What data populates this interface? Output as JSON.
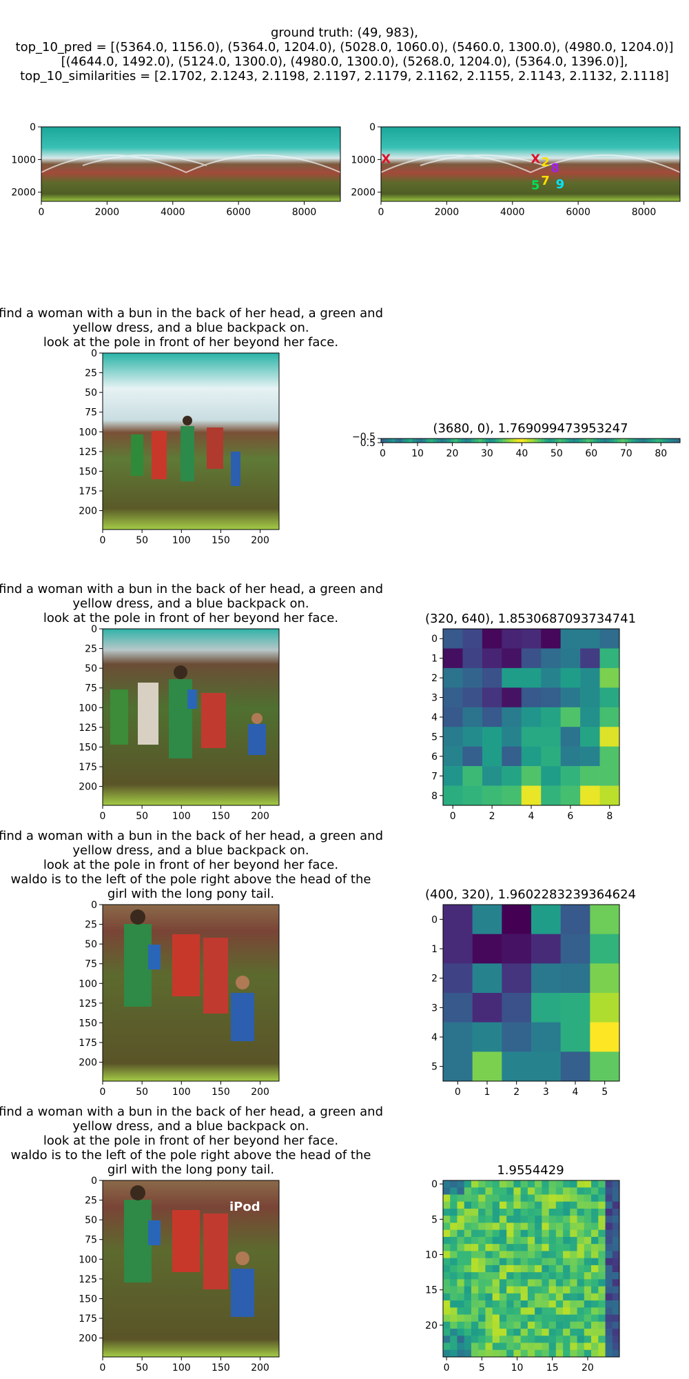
{
  "header": {
    "lines": [
      "ground truth: (49, 983),",
      "top_10_pred = [(5364.0, 1156.0), (5364.0, 1204.0), (5028.0, 1060.0), (5460.0, 1300.0), (4980.0, 1204.0)]",
      "[(4644.0, 1492.0), (5124.0, 1300.0), (4980.0, 1300.0), (5268.0, 1204.0), (5364.0, 1396.0)],",
      "top_10_similarities = [2.1702, 2.1243, 2.1198, 2.1197, 2.1179, 2.1162, 2.1155, 2.1143, 2.1132, 2.1118]"
    ]
  },
  "colors": {
    "viridis_low": "#440154",
    "viridis_mid": "#21918c",
    "viridis_high": "#fde725",
    "tent_teal": "#2fb3a8",
    "ground_green": "#5a6b2a"
  },
  "chart_data": [
    {
      "type": "image",
      "id": "panorama_left",
      "xticks": [
        0,
        2000,
        4000,
        6000,
        8000
      ],
      "yticks": [
        0,
        1000,
        2000
      ],
      "xlim": [
        0,
        9100
      ],
      "ylim": [
        2280,
        0
      ]
    },
    {
      "type": "image",
      "id": "panorama_right",
      "xticks": [
        0,
        2000,
        4000,
        6000,
        8000
      ],
      "yticks": [
        0,
        1000,
        2000
      ],
      "xlim": [
        0,
        9100
      ],
      "ylim": [
        2280,
        0
      ],
      "markers": [
        {
          "label": "X",
          "x": 150,
          "y": 983,
          "color": "#e0102a"
        },
        {
          "label": "X",
          "x": 4700,
          "y": 983,
          "color": "#e0102a"
        },
        {
          "label": "2",
          "x": 5000,
          "y": 1080,
          "color": "#ffe000"
        },
        {
          "label": "8",
          "x": 5300,
          "y": 1260,
          "color": "#a020f0"
        },
        {
          "label": "5",
          "x": 4700,
          "y": 1780,
          "color": "#00e05a"
        },
        {
          "label": "7",
          "x": 5000,
          "y": 1650,
          "color": "#ffe000"
        },
        {
          "label": "9",
          "x": 5450,
          "y": 1750,
          "color": "#00e5ff"
        }
      ]
    },
    {
      "type": "image",
      "id": "crop_1",
      "title_lines": [
        "find a woman with a bun in the back of her head, a green and",
        "yellow dress, and a blue backpack on.",
        "look at the pole in front of her beyond her face."
      ],
      "xticks": [
        0,
        50,
        100,
        150,
        200
      ],
      "yticks": [
        0,
        25,
        50,
        75,
        100,
        125,
        150,
        175,
        200
      ],
      "xlim": [
        0,
        224
      ],
      "ylim": [
        224,
        0
      ]
    },
    {
      "type": "heatmap",
      "id": "heat_1",
      "title": "(3680, 0), 1.769099473953247",
      "xticks": [
        0,
        10,
        20,
        30,
        40,
        50,
        60,
        70,
        80
      ],
      "ytick_labels": [
        "−0.5",
        "0.5"
      ],
      "xlim": [
        -0.5,
        85.5
      ],
      "rows": 1,
      "cols": 86,
      "values": [
        0.32,
        0.38,
        0.45,
        0.52,
        0.42,
        0.36,
        0.48,
        0.55,
        0.61,
        0.5,
        0.44,
        0.39,
        0.47,
        0.58,
        0.63,
        0.57,
        0.49,
        0.41,
        0.46,
        0.54,
        0.62,
        0.68,
        0.59,
        0.52,
        0.45,
        0.5,
        0.6,
        0.66,
        0.71,
        0.64,
        0.56,
        0.5,
        0.55,
        0.63,
        0.7,
        0.76,
        0.82,
        0.88,
        0.93,
        0.97,
        1.0,
        0.95,
        0.9,
        0.86,
        0.8,
        0.74,
        0.68,
        0.6,
        0.55,
        0.58,
        0.64,
        0.7,
        0.66,
        0.6,
        0.53,
        0.47,
        0.52,
        0.59,
        0.65,
        0.72,
        0.68,
        0.61,
        0.55,
        0.49,
        0.43,
        0.5,
        0.57,
        0.63,
        0.69,
        0.74,
        0.7,
        0.64,
        0.58,
        0.51,
        0.46,
        0.42,
        0.48,
        0.55,
        0.6,
        0.66,
        0.62,
        0.56,
        0.5,
        0.45,
        0.4,
        0.36
      ]
    },
    {
      "type": "image",
      "id": "crop_2",
      "title_lines": [
        "find a woman with a bun in the back of her head, a green and",
        "yellow dress, and a blue backpack on.",
        "look at the pole in front of her beyond her face."
      ],
      "xticks": [
        0,
        50,
        100,
        150,
        200
      ],
      "yticks": [
        0,
        25,
        50,
        75,
        100,
        125,
        150,
        175,
        200
      ],
      "xlim": [
        0,
        224
      ],
      "ylim": [
        224,
        0
      ]
    },
    {
      "type": "heatmap",
      "id": "heat_2",
      "title": "(320, 640), 1.8530687093734741",
      "xticks": [
        0,
        2,
        4,
        6,
        8
      ],
      "yticks": [
        0,
        1,
        2,
        3,
        4,
        5,
        6,
        7,
        8
      ],
      "rows": 9,
      "cols": 9,
      "values": [
        [
          0.28,
          0.22,
          0.02,
          0.1,
          0.12,
          0.02,
          0.42,
          0.42,
          0.35
        ],
        [
          0.04,
          0.2,
          0.1,
          0.05,
          0.25,
          0.35,
          0.4,
          0.18,
          0.65
        ],
        [
          0.38,
          0.32,
          0.25,
          0.55,
          0.55,
          0.45,
          0.55,
          0.48,
          0.8
        ],
        [
          0.3,
          0.25,
          0.15,
          0.05,
          0.28,
          0.3,
          0.4,
          0.48,
          0.6
        ],
        [
          0.28,
          0.38,
          0.28,
          0.42,
          0.52,
          0.58,
          0.72,
          0.5,
          0.7
        ],
        [
          0.42,
          0.48,
          0.55,
          0.45,
          0.6,
          0.6,
          0.38,
          0.58,
          0.95
        ],
        [
          0.45,
          0.3,
          0.55,
          0.3,
          0.55,
          0.62,
          0.42,
          0.45,
          0.72
        ],
        [
          0.52,
          0.68,
          0.5,
          0.58,
          0.72,
          0.55,
          0.65,
          0.72,
          0.72
        ],
        [
          0.62,
          0.65,
          0.68,
          0.7,
          0.97,
          0.65,
          0.7,
          0.97,
          0.9
        ]
      ]
    },
    {
      "type": "image",
      "id": "crop_3",
      "title_lines": [
        "find a woman with a bun in the back of her head, a green and",
        "yellow dress, and a blue backpack on.",
        "look at the pole in front of her beyond her face.",
        "waldo is to the left of the pole right above the head of the",
        "girl with the long pony tail."
      ],
      "xticks": [
        0,
        50,
        100,
        150,
        200
      ],
      "yticks": [
        0,
        25,
        50,
        75,
        100,
        125,
        150,
        175,
        200
      ],
      "xlim": [
        0,
        224
      ],
      "ylim": [
        224,
        0
      ]
    },
    {
      "type": "heatmap",
      "id": "heat_3",
      "title": "(400, 320), 1.9602283239364624",
      "xticks": [
        0,
        1,
        2,
        3,
        4,
        5
      ],
      "yticks": [
        0,
        1,
        2,
        3,
        4,
        5
      ],
      "rows": 6,
      "cols": 6,
      "values": [
        [
          0.12,
          0.45,
          0.0,
          0.55,
          0.28,
          0.78
        ],
        [
          0.12,
          0.02,
          0.05,
          0.12,
          0.3,
          0.65
        ],
        [
          0.2,
          0.45,
          0.15,
          0.4,
          0.38,
          0.8
        ],
        [
          0.28,
          0.12,
          0.25,
          0.6,
          0.62,
          0.88
        ],
        [
          0.38,
          0.45,
          0.32,
          0.42,
          0.62,
          1.0
        ],
        [
          0.38,
          0.8,
          0.45,
          0.45,
          0.3,
          0.75
        ]
      ]
    },
    {
      "type": "image",
      "id": "crop_4",
      "title_lines": [
        "find a woman with a bun in the back of her head, a green and",
        "yellow dress, and a blue backpack on.",
        "look at the pole in front of her beyond her face.",
        "waldo is to the left of the pole right above the head of the",
        "girl with the long pony tail."
      ],
      "annotation": "iPod",
      "xticks": [
        0,
        50,
        100,
        150,
        200
      ],
      "yticks": [
        0,
        25,
        50,
        75,
        100,
        125,
        150,
        175,
        200
      ],
      "xlim": [
        0,
        224
      ],
      "ylim": [
        224,
        0
      ]
    },
    {
      "type": "heatmap",
      "id": "heat_4",
      "title": "1.9554429",
      "xticks": [
        0,
        5,
        10,
        15,
        20
      ],
      "yticks": [
        0,
        5,
        10,
        15,
        20
      ],
      "rows": 25,
      "cols": 25,
      "seed": 7
    }
  ]
}
